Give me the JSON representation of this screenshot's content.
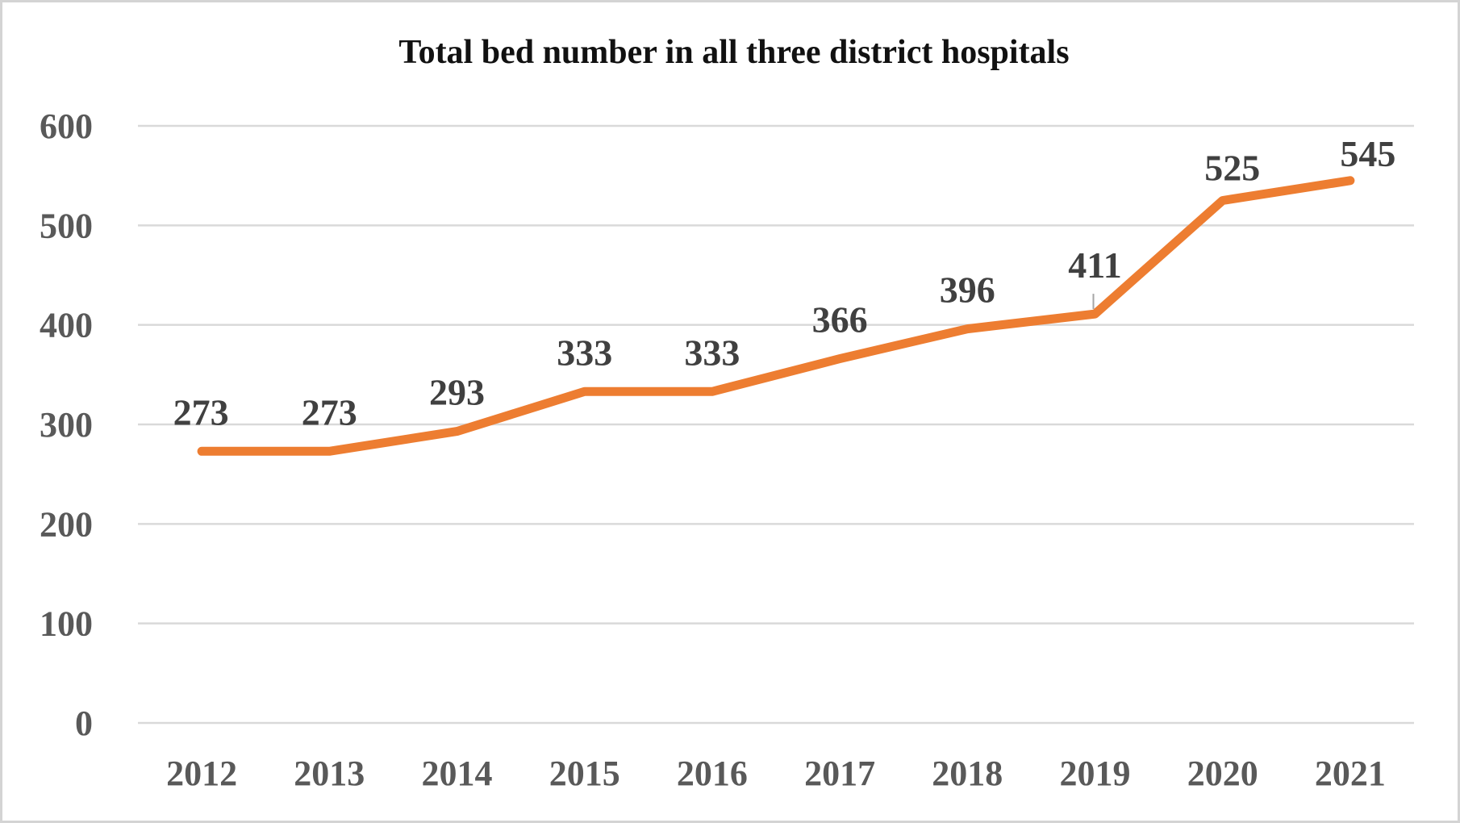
{
  "chart_data": {
    "type": "line",
    "title": "Total bed number in all three district hospitals",
    "xlabel": "",
    "ylabel": "",
    "categories": [
      "2012",
      "2013",
      "2014",
      "2015",
      "2016",
      "2017",
      "2018",
      "2019",
      "2020",
      "2021"
    ],
    "series": [
      {
        "values": [
          273,
          273,
          293,
          333,
          333,
          366,
          396,
          411,
          525,
          545
        ]
      }
    ],
    "data_labels": [
      "273",
      "273",
      "293",
      "333",
      "333",
      "366",
      "396",
      "411",
      "525",
      "545"
    ],
    "y_ticks": [
      "0",
      "100",
      "200",
      "300",
      "400",
      "500",
      "600"
    ],
    "ylim": [
      0,
      600
    ],
    "grid": true,
    "legend": "none",
    "colors": {
      "line": "#ed7d31",
      "grid": "#d9d9d9",
      "tick_text": "#595959",
      "label_text": "#404040"
    }
  }
}
